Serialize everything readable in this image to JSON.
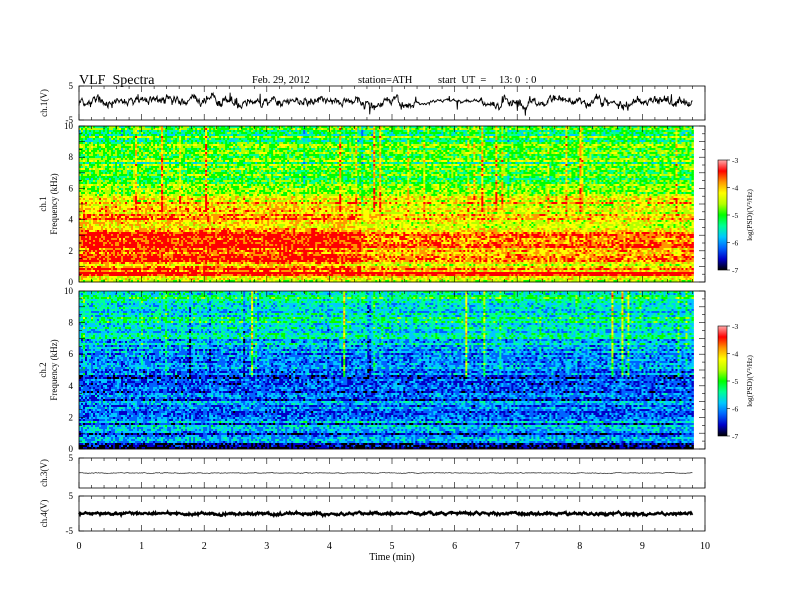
{
  "header": {
    "title": "VLF  Spectra",
    "date": "Feb. 29, 2012",
    "station": "station=ATH",
    "start_label": "start  UT  =",
    "start_time": "13: 0  : 0"
  },
  "colors": {
    "colormap": [
      "#000000",
      "#0000c8",
      "#0064ff",
      "#00c8ff",
      "#00ff96",
      "#00ff00",
      "#b4ff00",
      "#ffff00",
      "#ff9600",
      "#ff0000",
      "#ffaaaa",
      "#ffffff"
    ],
    "axes": "#000000"
  },
  "chart_data": [
    {
      "type": "line",
      "panel": "ch1-waveform",
      "ylabel": "ch.1(V)",
      "ylim": [
        -5,
        5
      ],
      "yticks": [
        "5",
        "-5"
      ],
      "baseline": 0.5,
      "amplitude": 1.4,
      "quiet_interval_min": [
        5.4,
        6.4
      ]
    },
    {
      "type": "heatmap",
      "panel": "ch1-spectrogram",
      "ylabel": "ch.1",
      "ylabel2": "Frequency  (kHz)",
      "ylim": [
        0,
        10
      ],
      "yticks": [
        "10",
        "8",
        "6",
        "4",
        "2",
        "0"
      ],
      "colorbar": {
        "label": "log(PSD)(V²/Hz)",
        "range": [
          -7,
          -3
        ],
        "ticks": [
          "-3",
          "-4",
          "-5",
          "-6",
          "-7"
        ]
      },
      "level_profile_high_khz": [
        [
          0.0,
          0.7
        ],
        [
          0.3,
          0.75
        ],
        [
          0.6,
          0.95
        ],
        [
          1.0,
          0.85
        ],
        [
          2.0,
          0.9
        ],
        [
          2.8,
          0.85
        ],
        [
          3.0,
          0.9
        ],
        [
          4.0,
          0.8
        ],
        [
          4.7,
          0.85
        ],
        [
          5.0,
          0.8
        ],
        [
          6.0,
          0.55
        ],
        [
          7.0,
          0.6
        ],
        [
          8.0,
          0.55
        ],
        [
          8.2,
          0.6
        ],
        [
          9.0,
          0.55
        ],
        [
          10.0,
          0.5
        ]
      ]
    },
    {
      "type": "heatmap",
      "panel": "ch2-spectrogram",
      "ylabel": "ch.2",
      "ylabel2": "Frequency  (kHz)",
      "ylim": [
        0,
        10
      ],
      "yticks": [
        "10",
        "8",
        "6",
        "4",
        "2",
        "0"
      ],
      "colorbar": {
        "label": "log(PSD)(V²/Hz)",
        "range": [
          -7,
          -3
        ],
        "ticks": [
          "-3",
          "-4",
          "-5",
          "-6",
          "-7"
        ]
      },
      "level_profile_high_khz": [
        [
          0.0,
          0.0
        ],
        [
          0.3,
          0.1
        ],
        [
          0.6,
          0.3
        ],
        [
          0.8,
          0.15
        ],
        [
          1.0,
          0.25
        ],
        [
          2.0,
          0.3
        ],
        [
          2.5,
          0.28
        ],
        [
          3.0,
          0.25
        ],
        [
          3.5,
          0.3
        ],
        [
          4.0,
          0.25
        ],
        [
          5.0,
          0.3
        ],
        [
          6.0,
          0.3
        ],
        [
          7.0,
          0.35
        ],
        [
          8.0,
          0.4
        ],
        [
          9.0,
          0.42
        ],
        [
          10.0,
          0.45
        ]
      ]
    },
    {
      "type": "line",
      "panel": "ch3-waveform",
      "ylabel": "ch.3(V)",
      "ylim": [
        -5,
        5
      ],
      "yticks": [
        "5"
      ],
      "baseline": 0.0,
      "amplitude": 0.1
    },
    {
      "type": "line",
      "panel": "ch4-waveform",
      "ylabel": "ch.4(V)",
      "ylim": [
        -5,
        5
      ],
      "yticks": [
        "5",
        "-5"
      ],
      "baseline": 0.0,
      "amplitude": 0.35
    }
  ],
  "x_axis": {
    "label": "Time  (min)",
    "range": [
      0,
      10
    ],
    "ticks": [
      "0",
      "1",
      "2",
      "3",
      "4",
      "5",
      "6",
      "7",
      "8",
      "9",
      "10"
    ],
    "data_end_min": 9.8
  }
}
